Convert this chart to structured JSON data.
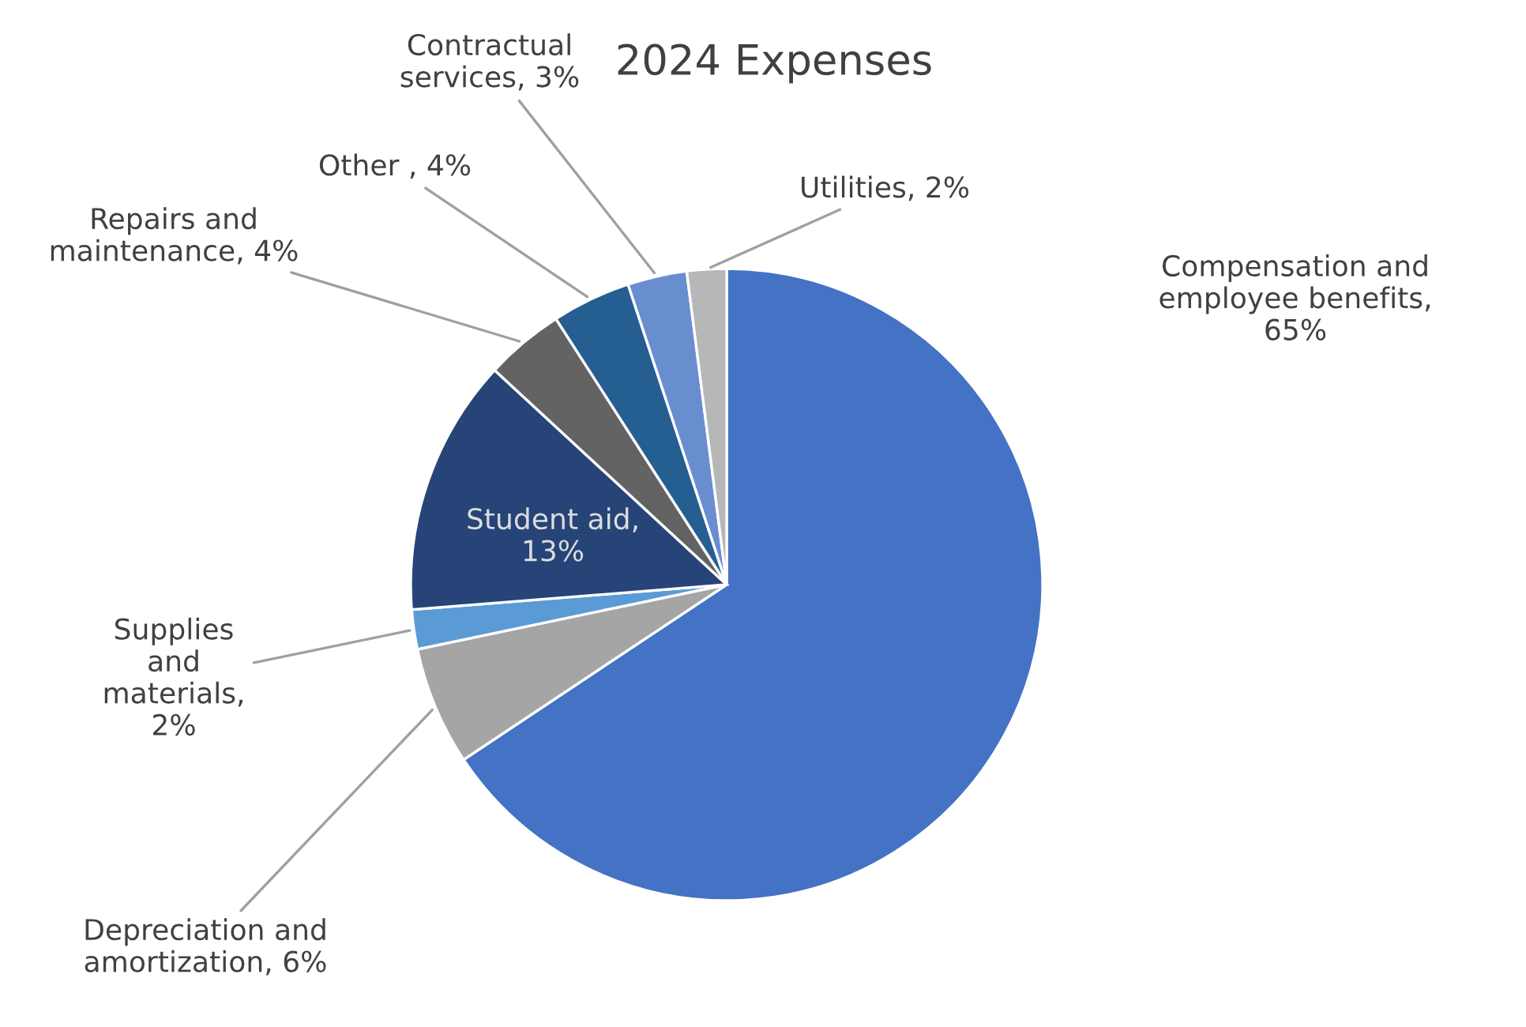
{
  "chart_data": {
    "type": "pie",
    "title": "2024 Expenses",
    "categories": [
      "Compensation and employee benefits, 65%",
      "Depreciation and amortization, 6%",
      "Supplies and materials, 2%",
      "Student aid, 13%",
      "Repairs and maintenance, 4%",
      "Other , 4%",
      "Contractual services, 3%",
      "Utilities, 2%"
    ],
    "values": [
      65,
      6,
      2,
      13,
      4,
      4,
      3,
      2
    ],
    "colors": [
      "#4472c4",
      "#a5a5a5",
      "#5b9bd5",
      "#264478",
      "#636363",
      "#255e91",
      "#698ed0",
      "#b7b7b7"
    ],
    "legend": false
  }
}
